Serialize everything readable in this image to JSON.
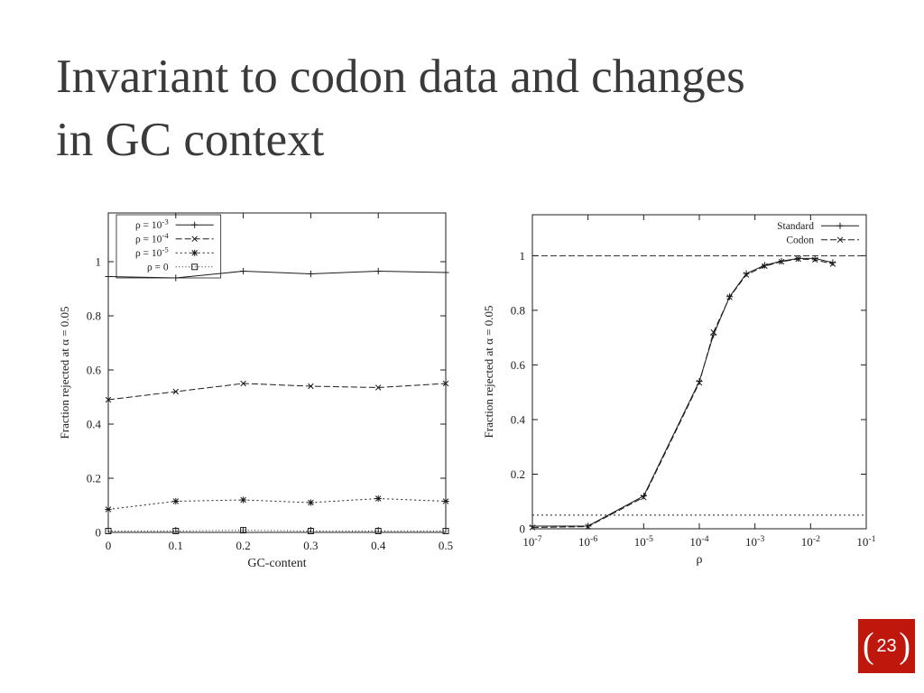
{
  "slide": {
    "title_line1": "Invariant to codon data and changes",
    "title_line2": "in GC context",
    "page_number": "23",
    "accent_color": "#c0170d",
    "title_color": "#3a3a3a"
  },
  "chart_data": [
    {
      "type": "line",
      "title": "",
      "xlabel": "GC-content",
      "ylabel": "Fraction rejected at α = 0.05",
      "xscale": "linear",
      "xlim": [
        0,
        0.5
      ],
      "ylim": [
        0,
        1.18
      ],
      "xticks": [
        0,
        0.1,
        0.2,
        0.3,
        0.4,
        0.5
      ],
      "xtick_labels": [
        "0",
        "0.1",
        "0.2",
        "0.3",
        "0.4",
        "0.5"
      ],
      "yticks": [
        0,
        0.2,
        0.4,
        0.6,
        0.8,
        1
      ],
      "ytick_labels": [
        "0",
        "0.2",
        "0.4",
        "0.6",
        "0.8",
        "1"
      ],
      "grid": false,
      "legend_position": "top-left",
      "legend_box": true,
      "x": [
        0,
        0.1,
        0.2,
        0.3,
        0.4,
        0.5
      ],
      "series": [
        {
          "name": "ρ = 10^-3",
          "marker": "plus",
          "dash": "solid",
          "values": [
            0.945,
            0.94,
            0.965,
            0.955,
            0.965,
            0.96
          ]
        },
        {
          "name": "ρ = 10^-4",
          "marker": "cross",
          "dash": "dashed",
          "values": [
            0.49,
            0.52,
            0.55,
            0.54,
            0.535,
            0.55
          ]
        },
        {
          "name": "ρ = 10^-5",
          "marker": "asterisk",
          "dash": "dotted",
          "values": [
            0.085,
            0.115,
            0.12,
            0.11,
            0.125,
            0.115
          ]
        },
        {
          "name": "ρ = 0",
          "marker": "square",
          "dash": "fine-dotted",
          "values": [
            0.005,
            0.005,
            0.008,
            0.005,
            0.005,
            0.005
          ]
        }
      ]
    },
    {
      "type": "line",
      "title": "",
      "xlabel": "ρ",
      "ylabel": "Fraction rejected at α = 0.05",
      "xscale": "log",
      "xlim": [
        1e-07,
        0.1
      ],
      "ylim": [
        0,
        1.15
      ],
      "xticks": [
        1e-07,
        1e-06,
        1e-05,
        0.0001,
        0.001,
        0.01,
        0.1
      ],
      "xtick_labels": [
        "10^-7",
        "10^-6",
        "10^-5",
        "10^-4",
        "10^-3",
        "10^-2",
        "10^-1"
      ],
      "yticks": [
        0,
        0.2,
        0.4,
        0.6,
        0.8,
        1
      ],
      "ytick_labels": [
        "0",
        "0.2",
        "0.4",
        "0.6",
        "0.8",
        "1"
      ],
      "grid": false,
      "legend_position": "top-right",
      "legend_box": false,
      "ref_lines": [
        {
          "y": 1.0,
          "dash": "dashed"
        },
        {
          "y": 0.05,
          "dash": "dotted"
        }
      ],
      "series": [
        {
          "name": "Standard",
          "marker": "plus",
          "dash": "solid",
          "points": [
            [
              1e-07,
              0.01
            ],
            [
              1e-06,
              0.01
            ],
            [
              1e-05,
              0.12
            ],
            [
              0.0001,
              0.54
            ],
            [
              0.00018,
              0.71
            ],
            [
              0.00035,
              0.85
            ],
            [
              0.0007,
              0.935
            ],
            [
              0.0015,
              0.965
            ],
            [
              0.003,
              0.98
            ],
            [
              0.006,
              0.99
            ],
            [
              0.012,
              0.99
            ],
            [
              0.025,
              0.975
            ]
          ]
        },
        {
          "name": "Codon",
          "marker": "cross",
          "dash": "dashed",
          "points": [
            [
              1e-07,
              0.005
            ],
            [
              1e-06,
              0.008
            ],
            [
              1e-05,
              0.115
            ],
            [
              0.0001,
              0.535
            ],
            [
              0.00018,
              0.72
            ],
            [
              0.00035,
              0.848
            ],
            [
              0.0007,
              0.93
            ],
            [
              0.0015,
              0.962
            ],
            [
              0.003,
              0.978
            ],
            [
              0.006,
              0.988
            ],
            [
              0.012,
              0.985
            ],
            [
              0.025,
              0.97
            ]
          ]
        }
      ]
    }
  ]
}
